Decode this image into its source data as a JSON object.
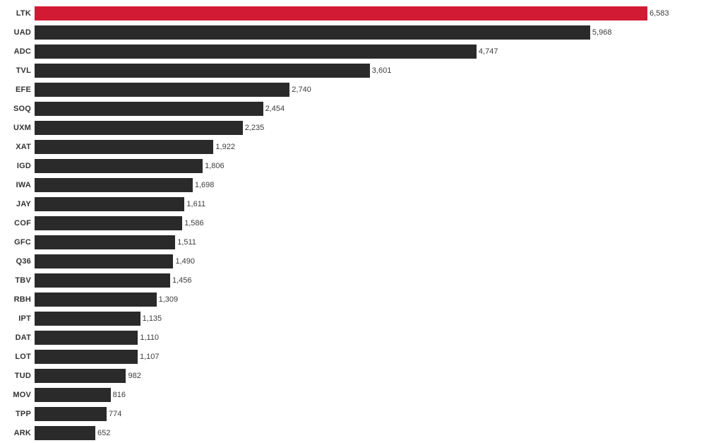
{
  "chart_data": {
    "type": "bar",
    "orientation": "horizontal",
    "title": "",
    "xlabel": "",
    "ylabel": "",
    "axis_visible": false,
    "grid": false,
    "legend": false,
    "xlim": [
      0,
      6583
    ],
    "max_value": 6583,
    "categories": [
      "LTK",
      "UAD",
      "ADC",
      "TVL",
      "EFE",
      "SOQ",
      "UXM",
      "XAT",
      "IGD",
      "IWA",
      "JAY",
      "COF",
      "GFC",
      "Q36",
      "TBV",
      "RBH",
      "IPT",
      "DAT",
      "LOT",
      "TUD",
      "MOV",
      "TPP",
      "ARK"
    ],
    "values": [
      6583,
      5968,
      4747,
      3601,
      2740,
      2454,
      2235,
      1922,
      1806,
      1698,
      1611,
      1586,
      1511,
      1490,
      1456,
      1309,
      1135,
      1110,
      1107,
      982,
      816,
      774,
      652
    ],
    "value_labels": [
      "6,583",
      "5,968",
      "4,747",
      "3,601",
      "2,740",
      "2,454",
      "2,235",
      "1,922",
      "1,806",
      "1,698",
      "1,611",
      "1,586",
      "1,511",
      "1,490",
      "1,456",
      "1,309",
      "1,135",
      "1,110",
      "1,107",
      "982",
      "816",
      "774",
      "652"
    ],
    "highlight_index": 0,
    "colors": {
      "bar": "#2A2A2A",
      "highlight": "#D21A35",
      "category_label": "#333333",
      "value_label": "#3D3D3D",
      "background": "#FFFFFF"
    }
  }
}
